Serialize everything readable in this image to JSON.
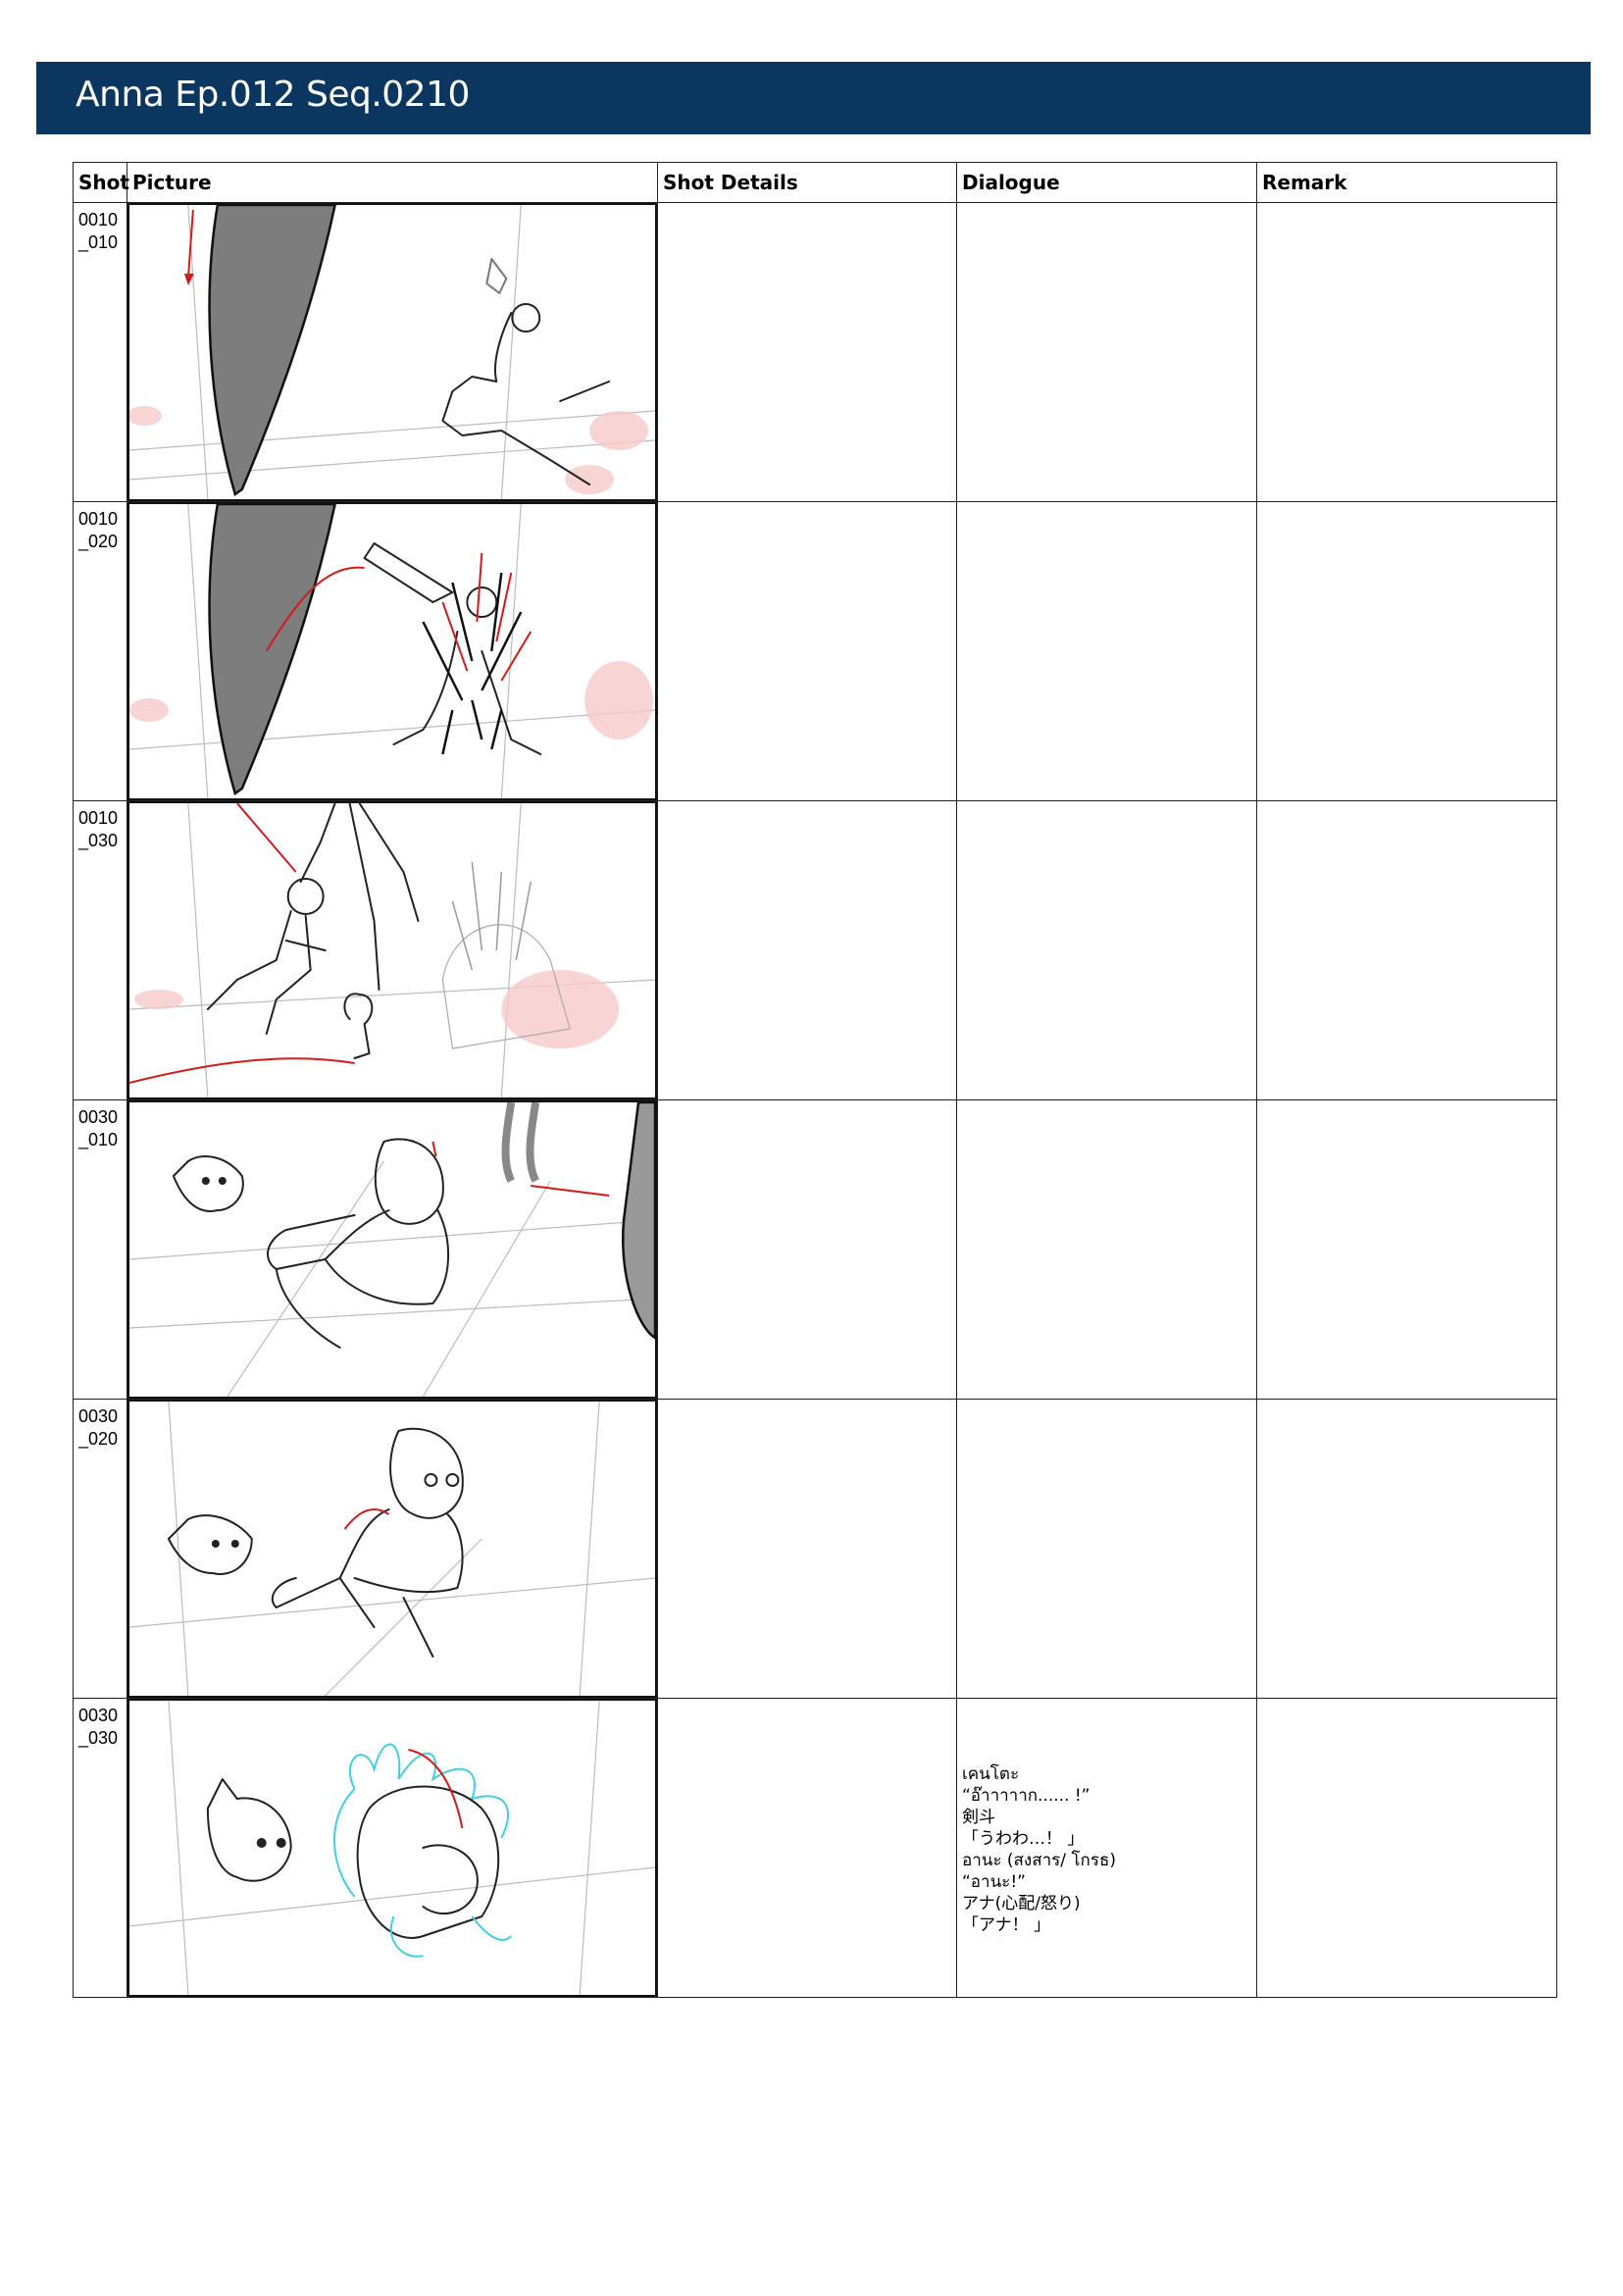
{
  "header": {
    "title": "Anna Ep.012 Seq.0210"
  },
  "columns": {
    "shot": "Shot",
    "picture": "Picture",
    "shot_details": "Shot Details",
    "dialogue": "Dialogue",
    "remark": "Remark"
  },
  "shots": [
    {
      "id": "0010\n_010",
      "details": "",
      "dialogue": [],
      "remark": "",
      "sketch": "giant blade descends toward kneeling armored soldier, red motion arrow"
    },
    {
      "id": "0010\n_020",
      "details": "",
      "dialogue": [],
      "remark": "",
      "sketch": "soldier impaled by spikes, gun flying, red arrows"
    },
    {
      "id": "0010\n_030",
      "details": "",
      "dialogue": [],
      "remark": "",
      "sketch": "boy lifted by tall figure, small creature, spiked soldier in background"
    },
    {
      "id": "0030\n_010",
      "details": "",
      "dialogue": [],
      "remark": "",
      "sketch": "boy crouching hugging himself, fish creature, blade on right"
    },
    {
      "id": "0030\n_020",
      "details": "",
      "dialogue": [],
      "remark": "",
      "sketch": "boy crouching looking worried, fish creature"
    },
    {
      "id": "0030\n_030",
      "details": "",
      "dialogue": [
        "เคนโตะ",
        "“อ๊าาาาาก...... !”",
        "剣斗",
        "「うわわ…！ 」",
        "อานะ (สงสาร/ โกรธ)",
        "“อานะ!”",
        "アナ(心配/怒り)",
        "「アナ！ 」"
      ],
      "remark": "",
      "sketch": "boy curled up with cyan energy aura, fish creature shocked"
    }
  ]
}
